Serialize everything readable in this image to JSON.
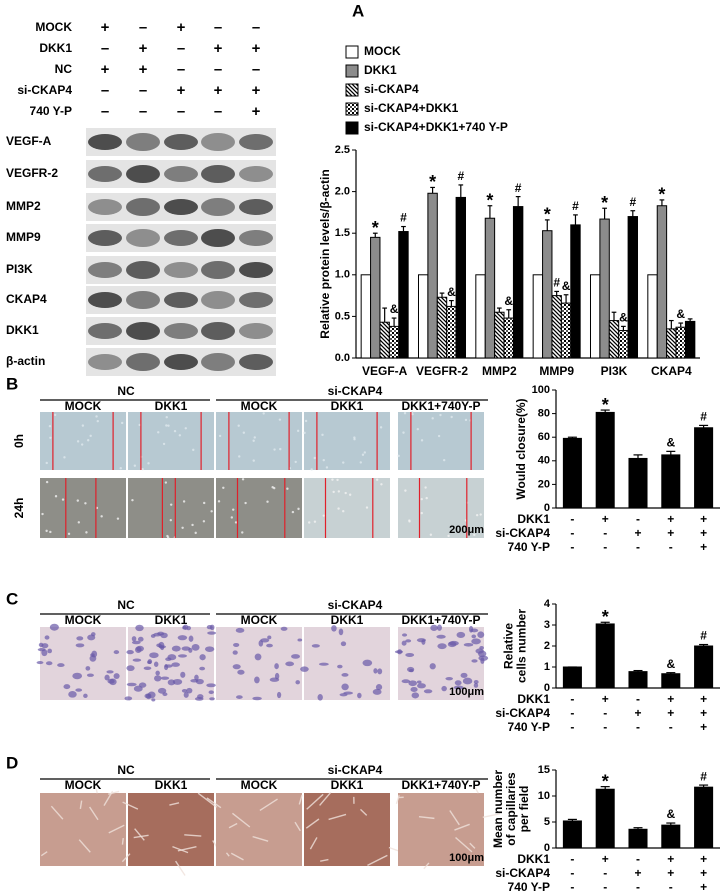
{
  "panel_labels": [
    "A",
    "B",
    "C",
    "D"
  ],
  "blot": {
    "conditions": [
      {
        "label": "MOCK",
        "signs": [
          "+",
          "–",
          "+",
          "–",
          "–"
        ]
      },
      {
        "label": "DKK1",
        "signs": [
          "–",
          "+",
          "–",
          "+",
          "+"
        ]
      },
      {
        "label": "NC",
        "signs": [
          "+",
          "+",
          "–",
          "–",
          "–"
        ]
      },
      {
        "label": "si-CKAP4",
        "signs": [
          "–",
          "–",
          "+",
          "+",
          "+"
        ]
      },
      {
        "label": "740 Y-P",
        "signs": [
          "–",
          "–",
          "–",
          "–",
          "+"
        ]
      }
    ],
    "bands": [
      "VEGF-A",
      "VEGFR-2",
      "MMP2",
      "MMP9",
      "PI3K",
      "CKAP4",
      "DKK1",
      "β-actin"
    ]
  },
  "image_panels": [
    {
      "groups": [
        "NC",
        "si-CKAP4"
      ],
      "columns": [
        "MOCK",
        "DKK1",
        "MOCK",
        "DKK1",
        "DKK1+740Y-P"
      ],
      "rows": [
        "0h",
        "24h"
      ],
      "scale": "200μm"
    },
    {
      "groups": [
        "NC",
        "si-CKAP4"
      ],
      "columns": [
        "MOCK",
        "DKK1",
        "MOCK",
        "DKK1",
        "DKK1+740Y-P"
      ],
      "scale": "100μm"
    },
    {
      "groups": [
        "NC",
        "si-CKAP4"
      ],
      "columns": [
        "MOCK",
        "DKK1",
        "MOCK",
        "DKK1",
        "DKK1+740Y-P"
      ],
      "scale": "100μm"
    }
  ],
  "chart_data": [
    {
      "type": "bar",
      "y_label": [
        "Relative protein levels/β-actin"
      ],
      "categories": [
        "VEGF-A",
        "VEGFR-2",
        "MMP2",
        "MMP9",
        "PI3K",
        "CKAP4"
      ],
      "ylim": [
        0,
        2.5
      ],
      "yticks": [
        {
          "value": 0,
          "label": "0.0"
        },
        {
          "value": 0.5,
          "label": "0.5"
        },
        {
          "value": 1,
          "label": "1.0"
        },
        {
          "value": 1.5,
          "label": "1.5"
        },
        {
          "value": 2,
          "label": "2.0"
        },
        {
          "value": 2.5,
          "label": "2.5"
        }
      ],
      "legend": "top",
      "series": [
        {
          "name": "MOCK",
          "color": "#ffffff",
          "values": [
            1.0,
            1.0,
            1.0,
            1.0,
            1.0,
            1.0
          ]
        },
        {
          "name": "DKK1",
          "color": "#8c8c8c",
          "values": [
            1.45,
            1.98,
            1.68,
            1.53,
            1.67,
            1.83
          ],
          "errors": [
            0.05,
            0.07,
            0.15,
            0.13,
            0.13,
            0.07
          ],
          "markers": [
            "*",
            "*",
            "*",
            "*",
            "*",
            "*"
          ]
        },
        {
          "name": "si-CKAP4",
          "color": "#ffffff",
          "pattern": "diagonal",
          "values": [
            0.43,
            0.73,
            0.55,
            0.75,
            0.45,
            0.35
          ],
          "errors": [
            0.17,
            0.05,
            0.05,
            0.05,
            0.1,
            0.1
          ],
          "markers": [
            null,
            null,
            null,
            "#",
            null,
            null
          ]
        },
        {
          "name": "si-CKAP4+DKK1",
          "color": "#ffffff",
          "pattern": "checker",
          "values": [
            0.38,
            0.62,
            0.48,
            0.66,
            0.33,
            0.37
          ],
          "errors": [
            0.1,
            0.07,
            0.1,
            0.1,
            0.05,
            0.05
          ],
          "markers": [
            "&",
            "&",
            "&",
            "&",
            "&",
            "&"
          ]
        },
        {
          "name": "si-CKAP4+DKK1+740 Y-P",
          "color": "#000000",
          "values": [
            1.52,
            1.93,
            1.82,
            1.6,
            1.7,
            0.44
          ],
          "errors": [
            0.06,
            0.15,
            0.12,
            0.12,
            0.07,
            0.03
          ],
          "markers": [
            "#",
            "#",
            "#",
            "#",
            "#",
            null
          ]
        }
      ]
    },
    {
      "type": "bar",
      "y_label": [
        "Would closure(%)"
      ],
      "color": "#000000",
      "values": [
        59,
        81,
        42,
        45,
        68
      ],
      "errors": [
        1,
        2,
        3,
        3,
        2
      ],
      "markers": [
        null,
        "*",
        null,
        "&",
        "#"
      ],
      "ylim": [
        0,
        100
      ],
      "yticks": [
        0,
        20,
        40,
        60,
        80,
        100
      ],
      "conditions": [
        {
          "label": "DKK1",
          "signs": [
            "-",
            "+",
            "-",
            "+",
            "+"
          ]
        },
        {
          "label": "si-CKAP4",
          "signs": [
            "-",
            "-",
            "+",
            "+",
            "+"
          ]
        },
        {
          "label": "740 Y-P",
          "signs": [
            "-",
            "-",
            "-",
            "-",
            "+"
          ]
        }
      ]
    },
    {
      "type": "bar",
      "y_label": [
        "Relative",
        "cells number"
      ],
      "color": "#000000",
      "values": [
        1,
        3.05,
        0.78,
        0.68,
        2.0
      ],
      "errors": [
        0,
        0.08,
        0.05,
        0.05,
        0.07
      ],
      "markers": [
        null,
        "*",
        null,
        "&",
        "#"
      ],
      "ylim": [
        0,
        4
      ],
      "yticks": [
        0,
        1,
        2,
        3,
        4
      ],
      "conditions": [
        {
          "label": "DKK1",
          "signs": [
            "-",
            "+",
            "-",
            "+",
            "+"
          ]
        },
        {
          "label": "si-CKAP4",
          "signs": [
            "-",
            "-",
            "+",
            "+",
            "+"
          ]
        },
        {
          "label": "740 Y-P",
          "signs": [
            "-",
            "-",
            "-",
            "-",
            "+"
          ]
        }
      ]
    },
    {
      "type": "bar",
      "y_label": [
        "Mean number",
        "of capillaries",
        "per field"
      ],
      "color": "#000000",
      "values": [
        5.2,
        11.3,
        3.6,
        4.4,
        11.7
      ],
      "errors": [
        0.3,
        0.5,
        0.3,
        0.4,
        0.4
      ],
      "markers": [
        null,
        "*",
        null,
        "&",
        "#"
      ],
      "ylim": [
        0,
        15
      ],
      "yticks": [
        0,
        5,
        10,
        15
      ],
      "conditions": [
        {
          "label": "DKK1",
          "signs": [
            "-",
            "+",
            "-",
            "+",
            "+"
          ]
        },
        {
          "label": "si-CKAP4",
          "signs": [
            "-",
            "-",
            "+",
            "+",
            "+"
          ]
        },
        {
          "label": "740 Y-P",
          "signs": [
            "-",
            "-",
            "-",
            "-",
            "+"
          ]
        }
      ]
    }
  ]
}
